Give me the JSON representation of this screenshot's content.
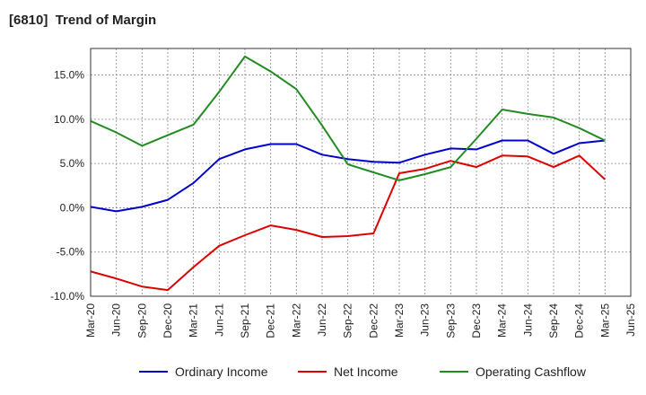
{
  "chart_data": {
    "type": "line",
    "title": "[6810]  Trend of Margin",
    "xlabel": "",
    "ylabel": "",
    "x": [
      "Mar-20",
      "Jun-20",
      "Sep-20",
      "Dec-20",
      "Mar-21",
      "Jun-21",
      "Sep-21",
      "Dec-21",
      "Mar-22",
      "Jun-22",
      "Sep-22",
      "Dec-22",
      "Mar-23",
      "Jun-23",
      "Sep-23",
      "Dec-23",
      "Mar-24",
      "Jun-24",
      "Sep-24",
      "Dec-24",
      "Mar-25",
      "Jun-25"
    ],
    "ylim": [
      -10,
      18
    ],
    "yticks": [
      -10,
      -5,
      0,
      5,
      10,
      15
    ],
    "ytick_labels": [
      "-10.0%",
      "-5.0%",
      "0.0%",
      "5.0%",
      "10.0%",
      "15.0%"
    ],
    "grid": true,
    "legend_position": "bottom",
    "series": [
      {
        "name": "Ordinary Income",
        "color": "#0000cc",
        "values": [
          0.1,
          -0.4,
          0.1,
          0.9,
          2.8,
          5.5,
          6.6,
          7.2,
          7.2,
          6.0,
          5.5,
          5.2,
          5.1,
          6.0,
          6.7,
          6.6,
          7.6,
          7.6,
          6.1,
          7.3,
          7.6,
          null
        ]
      },
      {
        "name": "Net Income",
        "color": "#dd0000",
        "values": [
          -7.2,
          -8.0,
          -8.9,
          -9.3,
          -6.7,
          -4.3,
          -3.1,
          -2.0,
          -2.5,
          -3.3,
          -3.2,
          -2.9,
          3.9,
          4.4,
          5.3,
          4.6,
          5.9,
          5.8,
          4.6,
          5.9,
          3.2,
          null
        ]
      },
      {
        "name": "Operating Cashflow",
        "color": "#228b22",
        "values": [
          9.8,
          8.5,
          7.0,
          8.2,
          9.4,
          13.1,
          17.1,
          15.4,
          13.4,
          9.3,
          4.9,
          4.0,
          3.1,
          3.8,
          4.6,
          7.8,
          11.1,
          10.6,
          10.2,
          9.0,
          7.6,
          null
        ]
      }
    ]
  }
}
